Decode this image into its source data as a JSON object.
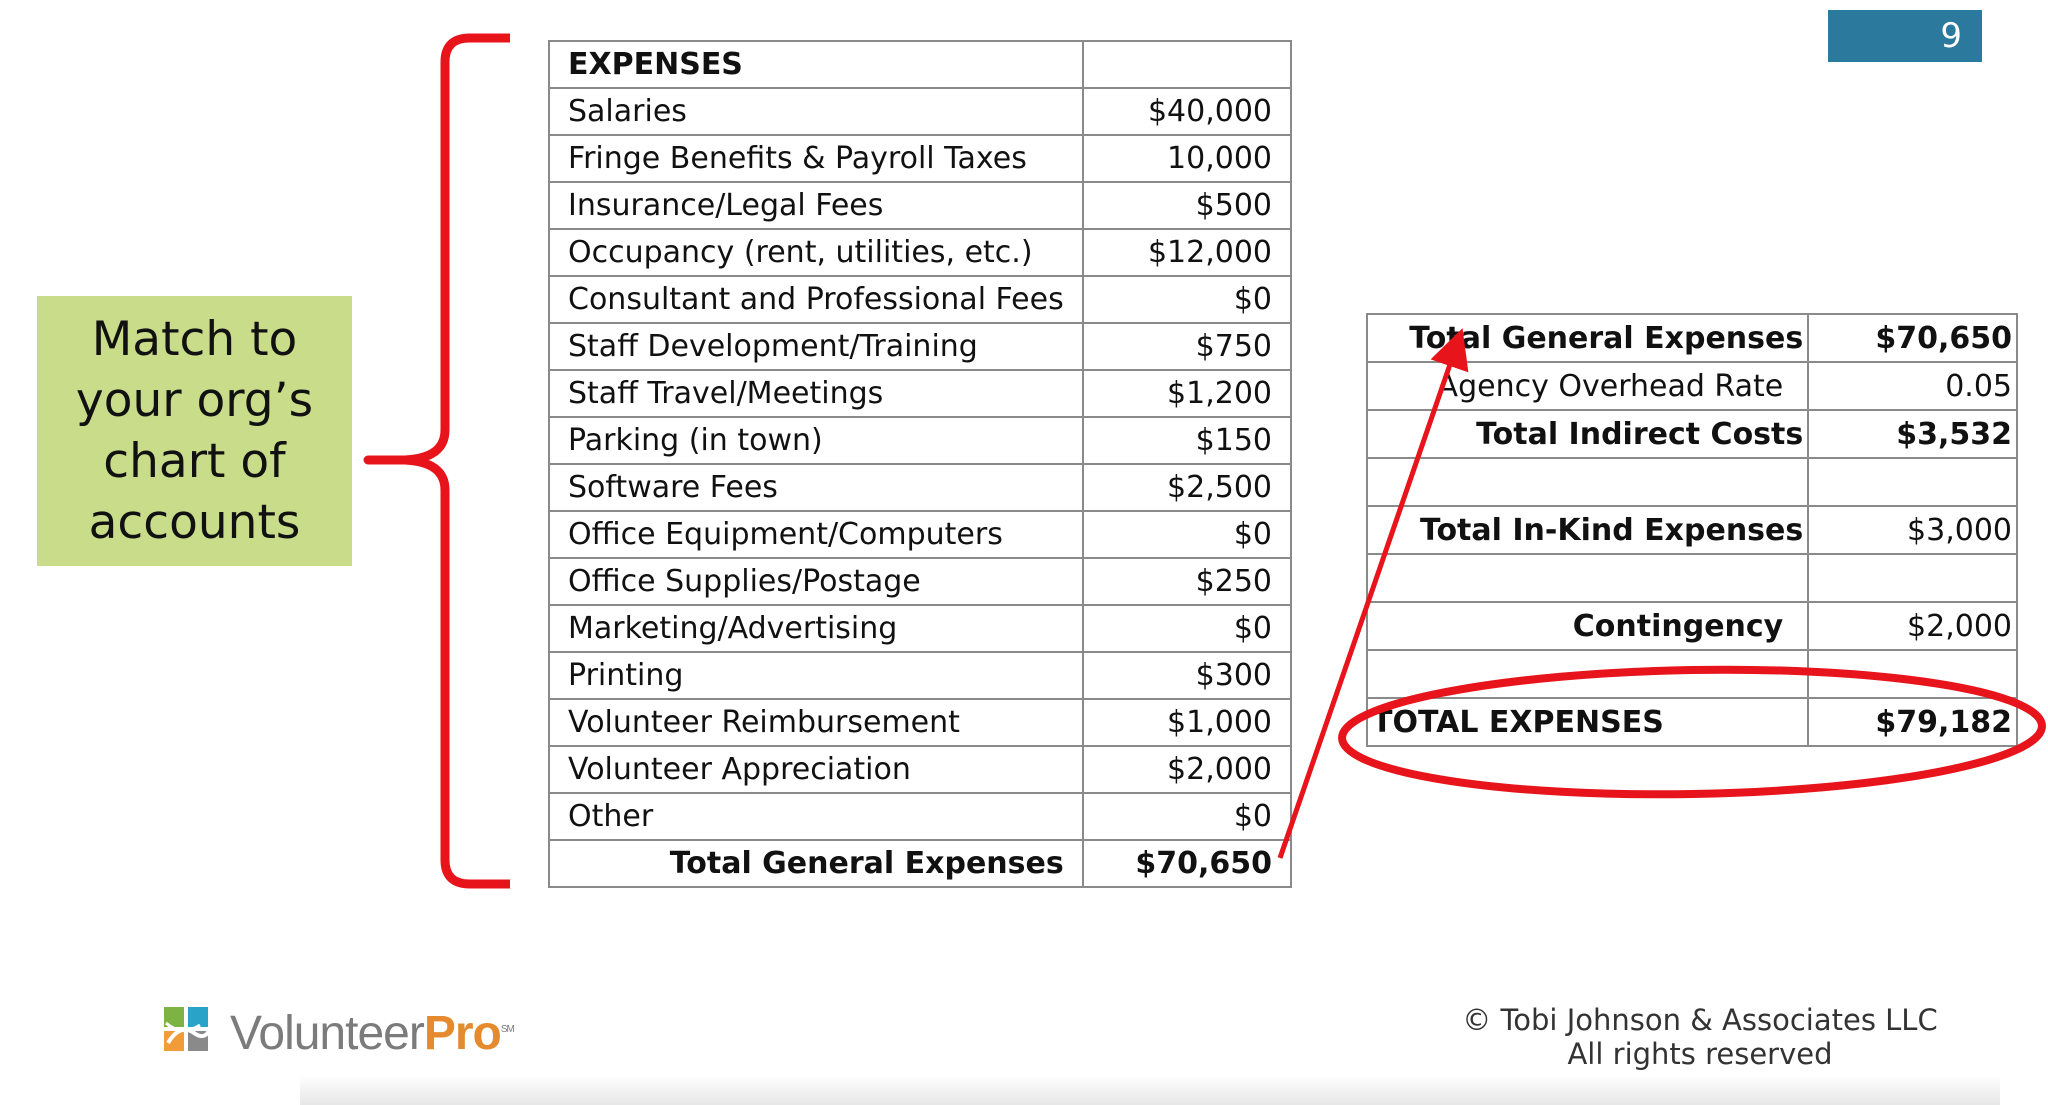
{
  "slide_number": "9",
  "callout": {
    "lines": [
      "Match to",
      "your org’s",
      "chart of",
      "accounts"
    ]
  },
  "expenses_table": {
    "header": "EXPENSES",
    "rows": [
      {
        "label": "Salaries",
        "value": "$40,000"
      },
      {
        "label": "Fringe Benefits & Payroll Taxes",
        "value": "10,000"
      },
      {
        "label": "Insurance/Legal Fees",
        "value": "$500"
      },
      {
        "label": "Occupancy (rent, utilities, etc.)",
        "value": "$12,000"
      },
      {
        "label": "Consultant and Professional Fees",
        "value": "$0"
      },
      {
        "label": "Staff Development/Training",
        "value": "$750"
      },
      {
        "label": "Staff Travel/Meetings",
        "value": "$1,200"
      },
      {
        "label": "Parking (in town)",
        "value": "$150"
      },
      {
        "label": "Software Fees",
        "value": "$2,500"
      },
      {
        "label": "Office Equipment/Computers",
        "value": "$0"
      },
      {
        "label": "Office Supplies/Postage",
        "value": "$250"
      },
      {
        "label": "Marketing/Advertising",
        "value": "$0"
      },
      {
        "label": "Printing",
        "value": "$300"
      },
      {
        "label": "Volunteer  Reimbursement",
        "value": "$1,000"
      },
      {
        "label": "Volunteer  Appreciation",
        "value": "$2,000"
      },
      {
        "label": "Other",
        "value": "$0"
      }
    ],
    "total": {
      "label": "Total General Expenses",
      "value": "$70,650"
    }
  },
  "summary_table": {
    "rows": [
      {
        "label": "Total General Expenses",
        "value": "$70,650"
      },
      {
        "label": "Agency Overhead Rate",
        "value": "0.05"
      },
      {
        "label": "Total Indirect Costs",
        "value": "$3,532"
      },
      {
        "label": "",
        "value": ""
      },
      {
        "label": "Total In-Kind Expenses",
        "value": "$3,000"
      },
      {
        "label": "",
        "value": ""
      },
      {
        "label": "Contingency",
        "value": "$2,000"
      },
      {
        "label": "",
        "value": ""
      },
      {
        "label": "TOTAL EXPENSES",
        "value": "$79,182"
      }
    ]
  },
  "annotation_color": "#e8141b",
  "logo": {
    "brand_main": "Volunteer",
    "brand_accent": "Pro",
    "mark": "SM"
  },
  "copyright": {
    "line1": "© Tobi Johnson & Associates LLC",
    "line2": "All rights reserved"
  }
}
